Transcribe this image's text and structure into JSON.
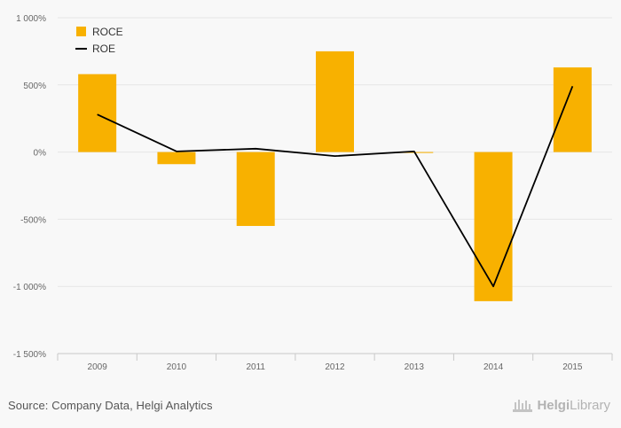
{
  "chart_data": {
    "type": "bar",
    "categories": [
      "2009",
      "2010",
      "2011",
      "2012",
      "2013",
      "2014",
      "2015"
    ],
    "series": [
      {
        "name": "ROCE",
        "type": "bar",
        "color": "#f8b100",
        "values": [
          580,
          -90,
          -550,
          750,
          -5,
          -1110,
          630
        ]
      },
      {
        "name": "ROE",
        "type": "line",
        "color": "#000000",
        "values": [
          280,
          5,
          25,
          -30,
          5,
          -1000,
          490
        ]
      }
    ],
    "ylim": [
      -1500,
      1000
    ],
    "yticks": [
      1000,
      500,
      0,
      -500,
      -1000,
      -1500
    ],
    "ytick_labels": [
      "1 000%",
      "500%",
      "0%",
      "-500%",
      "-1 000%",
      "-1 500%"
    ],
    "grid": true,
    "legend_position": "top-left"
  },
  "footer": {
    "source": "Source: Company Data, Helgi Analytics",
    "logo_part1": "Helgi",
    "logo_part2": "Library"
  },
  "colors": {
    "roce": "#f8b100",
    "roe": "#000000",
    "grid": "#e6e6e6"
  }
}
